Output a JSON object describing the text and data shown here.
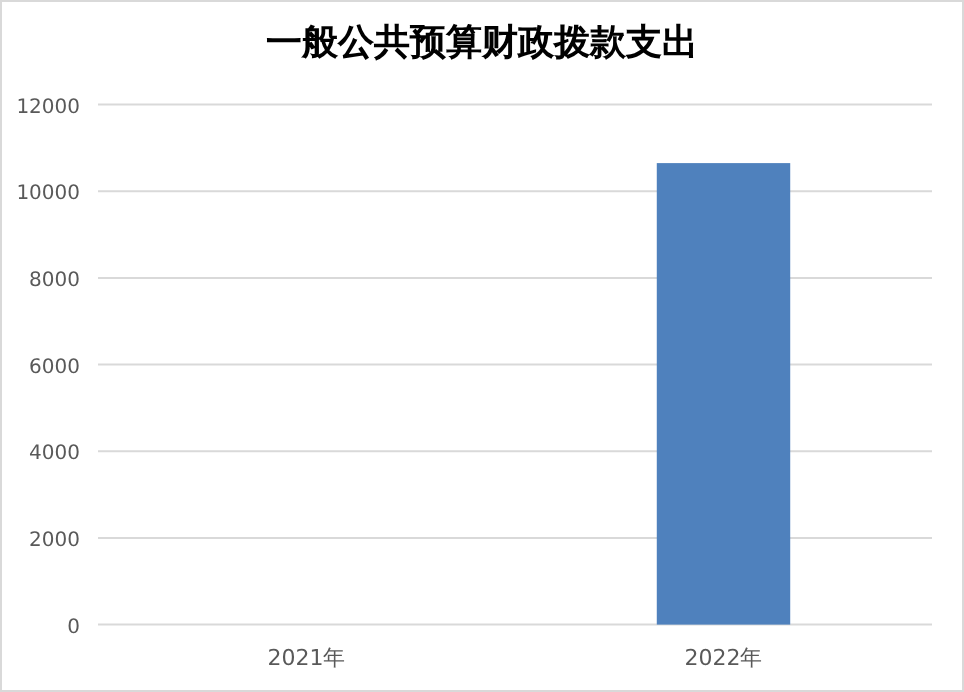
{
  "chart_data": {
    "type": "bar",
    "title": "一般公共预算财政拨款支出",
    "categories": [
      "2021年",
      "2022年"
    ],
    "values": [
      0,
      10650
    ],
    "color": "#4f81bd",
    "ylim": [
      0,
      12000
    ],
    "yticks": [
      0,
      2000,
      4000,
      6000,
      8000,
      10000,
      12000
    ],
    "grid": "y"
  }
}
